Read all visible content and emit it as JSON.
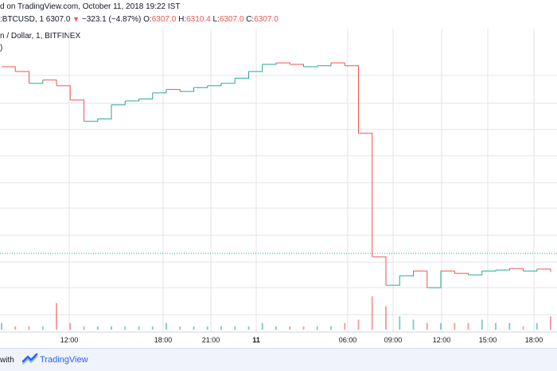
{
  "header": {
    "published": "d on TradingView.com, October 11, 2018 19:22 IST",
    "symbol": ":BTCUSD, 1",
    "last": "6307.0",
    "change_arrow": "▼",
    "change": "−323.1 (−4.87%)",
    "o_label": "O:",
    "o_value": "6307.0",
    "h_label": "H:",
    "h_value": "6310.4",
    "l_label": "L:",
    "l_value": "6307.0",
    "c_label": "C:",
    "c_value": "6307.0"
  },
  "subtitle": "n / Dollar, 1, BITFINEX",
  "paren": ")",
  "footer": {
    "with": "with",
    "brand": "TradingView",
    "logo_icon": "tradingview-logo-icon"
  },
  "colors": {
    "up": "#26a69a",
    "down": "#ef5350",
    "grid": "#e0e3eb",
    "last_line": "#26a69a"
  },
  "chart_data": {
    "type": "line",
    "x_ticks": [
      "12:00",
      "18:00",
      "21:00",
      "11",
      "06:00",
      "09:00",
      "12:00",
      "15:00",
      "18:00"
    ],
    "grid": true,
    "series": [
      {
        "values": [
          6700,
          6690,
          6665,
          6672,
          6660,
          6630,
          6585,
          6590,
          6620,
          6628,
          6632,
          6645,
          6652,
          6648,
          6656,
          6660,
          6665,
          6676,
          6690,
          6705,
          6708,
          6705,
          6700,
          6702,
          6708,
          6702,
          6560,
          6300,
          6240,
          6260,
          6270,
          6235,
          6270,
          6265,
          6262,
          6270,
          6272,
          6275,
          6270,
          6274,
          6268
        ]
      }
    ],
    "volume": [
      2,
      1,
      1,
      1,
      8,
      2,
      1,
      1,
      1,
      1,
      1,
      1,
      2,
      1,
      1,
      1,
      1,
      1,
      1,
      2,
      1,
      1,
      1,
      1,
      1,
      2,
      3,
      10,
      7,
      4,
      3,
      2,
      2,
      2,
      2,
      3,
      2,
      2,
      1,
      2,
      4
    ],
    "last_value": 6307.0
  }
}
